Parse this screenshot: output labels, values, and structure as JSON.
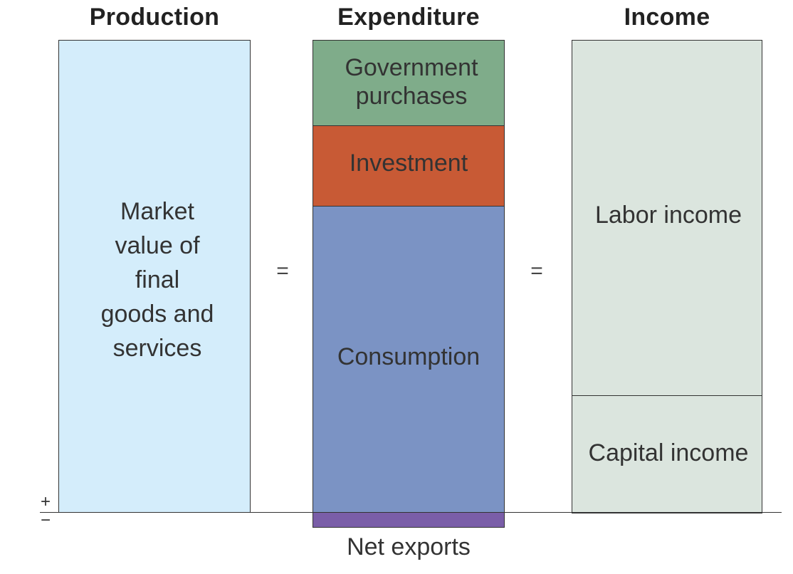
{
  "columns": {
    "production": {
      "heading": "Production",
      "label": "Market\nvalue of\nfinal\ngoods and\nservices",
      "color": "#d4edfb"
    },
    "expenditure": {
      "heading": "Expenditure",
      "segments": {
        "government": {
          "label": "Government\npurchases",
          "color": "#7fac8a"
        },
        "investment": {
          "label": "Investment",
          "color": "#c85a35"
        },
        "consumption": {
          "label": "Consumption",
          "color": "#7b93c4"
        },
        "net_exports": {
          "label": "Net exports",
          "color": "#7a5ea8"
        }
      }
    },
    "income": {
      "heading": "Income",
      "segments": {
        "labor": {
          "label": "Labor income",
          "color": "#dbe5de"
        },
        "capital": {
          "label": "Capital income",
          "color": "#dbe5de"
        }
      }
    }
  },
  "operators": {
    "equals_1": "=",
    "equals_2": "="
  },
  "axis_signs": {
    "plus": "+",
    "minus": "−"
  }
}
